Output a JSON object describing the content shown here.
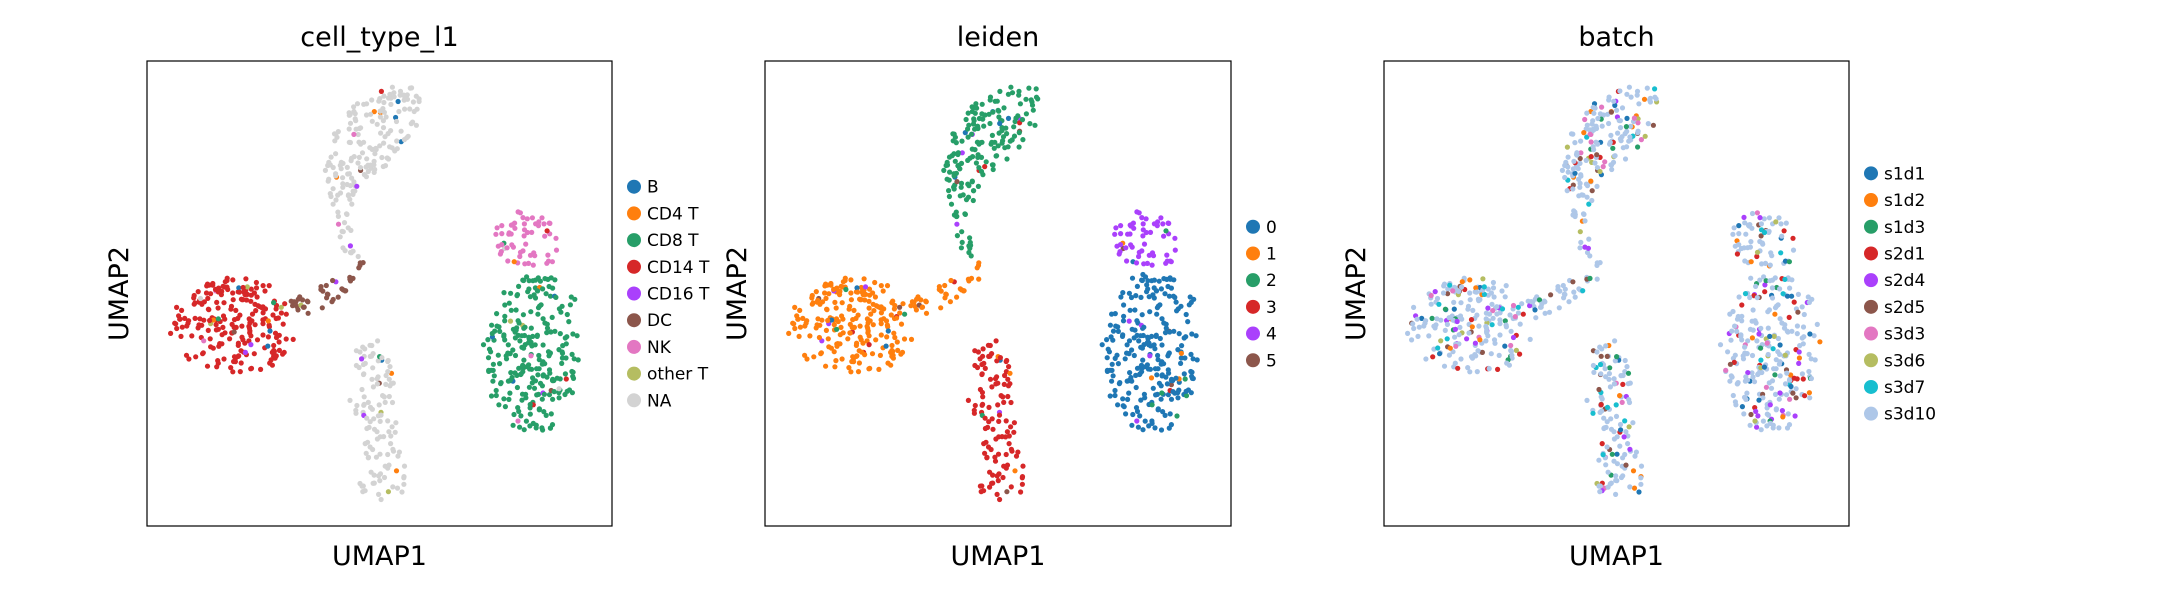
{
  "chart_data": [
    {
      "type": "scatter",
      "title": "cell_type_l1",
      "xlabel": "UMAP1",
      "ylabel": "UMAP2",
      "show_ticks": false,
      "grid": false,
      "legend_position": "right",
      "legend": [
        {
          "label": "B",
          "color": "#1f77b4"
        },
        {
          "label": "CD4 T",
          "color": "#ff7f0e"
        },
        {
          "label": "CD8 T",
          "color": "#279e68"
        },
        {
          "label": "CD14 T",
          "color": "#d62728"
        },
        {
          "label": "CD16 T",
          "color": "#aa40fc"
        },
        {
          "label": "DC",
          "color": "#8c564b"
        },
        {
          "label": "NK",
          "color": "#e377c2"
        },
        {
          "label": "other T",
          "color": "#b5bd61"
        },
        {
          "label": "NA",
          "color": "#d3d3d3"
        }
      ]
    },
    {
      "type": "scatter",
      "title": "leiden",
      "xlabel": "UMAP1",
      "ylabel": "UMAP2",
      "show_ticks": false,
      "grid": false,
      "legend_position": "right",
      "legend": [
        {
          "label": "0",
          "color": "#1f77b4"
        },
        {
          "label": "1",
          "color": "#ff7f0e"
        },
        {
          "label": "2",
          "color": "#279e68"
        },
        {
          "label": "3",
          "color": "#d62728"
        },
        {
          "label": "4",
          "color": "#aa40fc"
        },
        {
          "label": "5",
          "color": "#8c564b"
        }
      ]
    },
    {
      "type": "scatter",
      "title": "batch",
      "xlabel": "UMAP1",
      "ylabel": "UMAP2",
      "show_ticks": false,
      "grid": false,
      "legend_position": "right",
      "legend": [
        {
          "label": "s1d1",
          "color": "#1f77b4"
        },
        {
          "label": "s1d2",
          "color": "#ff7f0e"
        },
        {
          "label": "s1d3",
          "color": "#279e68"
        },
        {
          "label": "s2d1",
          "color": "#d62728"
        },
        {
          "label": "s2d4",
          "color": "#aa40fc"
        },
        {
          "label": "s2d5",
          "color": "#8c564b"
        },
        {
          "label": "s3d3",
          "color": "#e377c2"
        },
        {
          "label": "s3d6",
          "color": "#b5bd61"
        },
        {
          "label": "s3d7",
          "color": "#17becf"
        },
        {
          "label": "s3d10",
          "color": "#aec7e8"
        }
      ]
    }
  ]
}
